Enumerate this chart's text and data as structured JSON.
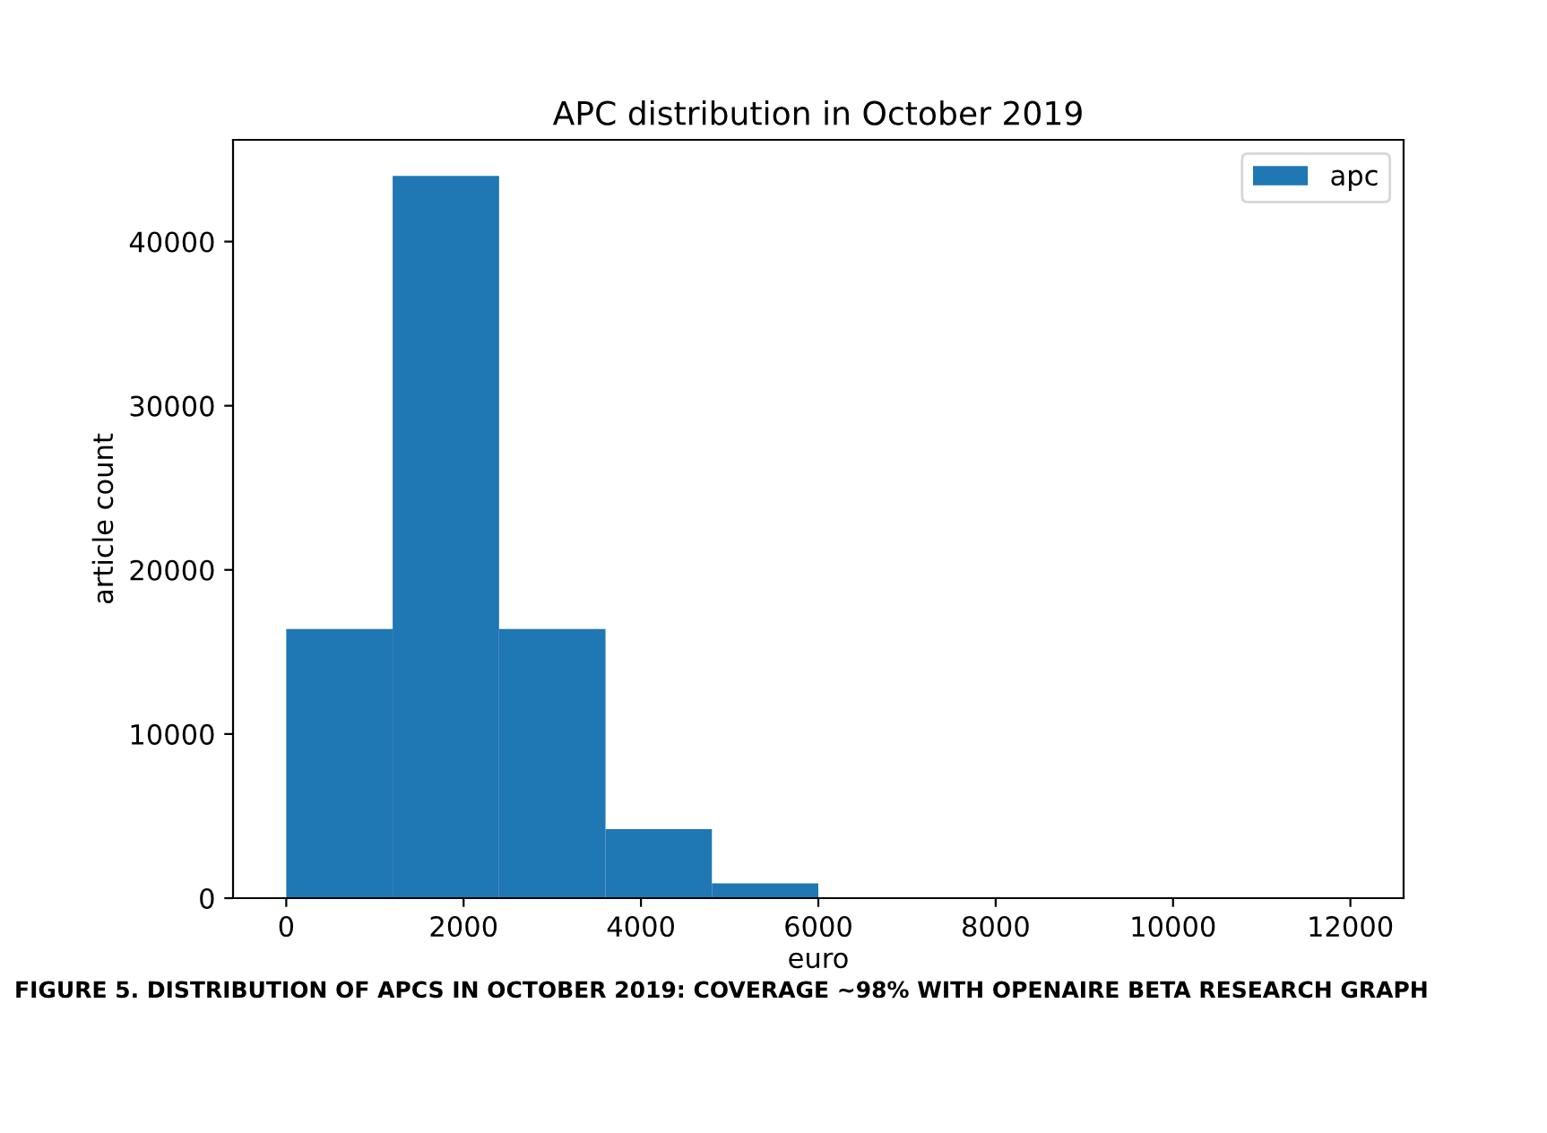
{
  "chart_data": {
    "type": "histogram",
    "title": "APC distribution in October 2019",
    "xlabel": "euro",
    "ylabel": "article count",
    "bins": [
      0,
      1200,
      2400,
      3600,
      4800,
      6000,
      7200,
      8400,
      9600,
      10800,
      12000
    ],
    "series": [
      {
        "name": "apc",
        "color": "#1f77b4",
        "values": [
          16400,
          44000,
          16400,
          4200,
          900,
          0,
          0,
          0,
          0,
          0
        ]
      }
    ],
    "xlim": [
      -600,
      12600
    ],
    "xticks": [
      0,
      2000,
      4000,
      6000,
      8000,
      10000,
      12000
    ],
    "ylim": [
      0,
      46200
    ],
    "yticks": [
      0,
      10000,
      20000,
      30000,
      40000
    ],
    "legend": "top right",
    "grid": false,
    "annotations": [
      "FIGURE 5. DISTRIBUTION OF APCS IN OCTOBER 2019: COVERAGE ~98% WITH OPENAIRE BETA RESEARCH GRAPH"
    ]
  }
}
